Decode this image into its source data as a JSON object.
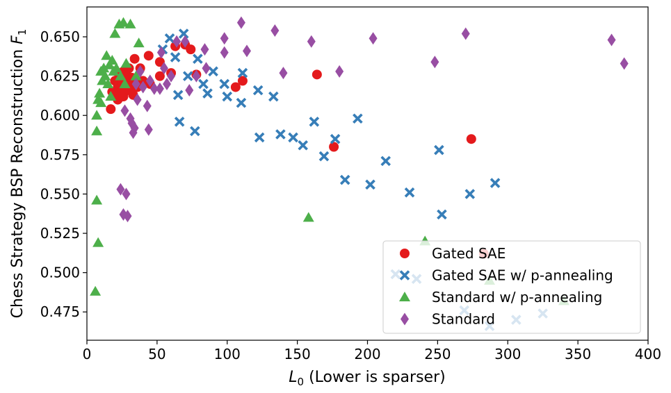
{
  "chart_data": {
    "type": "scatter",
    "title": "",
    "xlabel_var": "L",
    "xlabel_sub": "0",
    "xlabel_rest": " (Lower is sparser)",
    "ylabel_text": "Chess Strategy BSP Reconstruction ",
    "ylabel_var": "F",
    "ylabel_sub": "1",
    "xlim": [
      0,
      400
    ],
    "ylim": [
      0.457,
      0.669
    ],
    "xticks": [
      0,
      50,
      100,
      150,
      200,
      250,
      300,
      350,
      400
    ],
    "yticks": [
      0.475,
      0.5,
      0.525,
      0.55,
      0.575,
      0.6,
      0.625,
      0.65
    ],
    "ytick_labels": [
      "0.475",
      "0.500",
      "0.525",
      "0.550",
      "0.575",
      "0.600",
      "0.625",
      "0.650"
    ],
    "legend_position": "lower-right",
    "series": [
      {
        "name": "Gated SAE",
        "marker": "circle",
        "color": "#e41a1c",
        "points": [
          [
            17,
            0.604
          ],
          [
            18,
            0.615
          ],
          [
            20,
            0.622
          ],
          [
            21,
            0.614
          ],
          [
            22,
            0.61
          ],
          [
            22,
            0.618
          ],
          [
            23,
            0.625
          ],
          [
            24,
            0.615
          ],
          [
            25,
            0.62
          ],
          [
            26,
            0.612
          ],
          [
            26,
            0.628
          ],
          [
            27,
            0.618
          ],
          [
            28,
            0.622
          ],
          [
            29,
            0.625
          ],
          [
            30,
            0.616
          ],
          [
            30,
            0.63
          ],
          [
            31,
            0.62
          ],
          [
            32,
            0.624
          ],
          [
            33,
            0.613
          ],
          [
            34,
            0.636
          ],
          [
            35,
            0.62
          ],
          [
            36,
            0.618
          ],
          [
            38,
            0.63
          ],
          [
            40,
            0.622
          ],
          [
            44,
            0.638
          ],
          [
            45,
            0.62
          ],
          [
            52,
            0.634
          ],
          [
            52,
            0.625
          ],
          [
            60,
            0.627
          ],
          [
            63,
            0.644
          ],
          [
            70,
            0.645
          ],
          [
            74,
            0.642
          ],
          [
            78,
            0.626
          ],
          [
            106,
            0.618
          ],
          [
            111,
            0.622
          ],
          [
            164,
            0.626
          ],
          [
            176,
            0.58
          ],
          [
            274,
            0.585
          ],
          [
            283,
            0.512
          ]
        ]
      },
      {
        "name": "Gated SAE w/ p-annealing",
        "marker": "x",
        "color": "#377eb8",
        "points": [
          [
            54,
            0.642
          ],
          [
            59,
            0.649
          ],
          [
            63,
            0.637
          ],
          [
            65,
            0.613
          ],
          [
            66,
            0.596
          ],
          [
            69,
            0.652
          ],
          [
            72,
            0.625
          ],
          [
            77,
            0.59
          ],
          [
            79,
            0.636
          ],
          [
            83,
            0.62
          ],
          [
            86,
            0.614
          ],
          [
            90,
            0.628
          ],
          [
            98,
            0.62
          ],
          [
            100,
            0.612
          ],
          [
            110,
            0.608
          ],
          [
            111,
            0.627
          ],
          [
            122,
            0.616
          ],
          [
            123,
            0.586
          ],
          [
            133,
            0.612
          ],
          [
            138,
            0.588
          ],
          [
            147,
            0.586
          ],
          [
            154,
            0.581
          ],
          [
            162,
            0.596
          ],
          [
            169,
            0.574
          ],
          [
            177,
            0.585
          ],
          [
            184,
            0.559
          ],
          [
            193,
            0.598
          ],
          [
            202,
            0.556
          ],
          [
            213,
            0.571
          ],
          [
            220,
            0.499
          ],
          [
            230,
            0.551
          ],
          [
            235,
            0.496
          ],
          [
            251,
            0.578
          ],
          [
            253,
            0.537
          ],
          [
            269,
            0.476
          ],
          [
            273,
            0.55
          ],
          [
            287,
            0.466
          ],
          [
            291,
            0.557
          ],
          [
            306,
            0.47
          ],
          [
            325,
            0.474
          ]
        ]
      },
      {
        "name": "Standard w/ p-annealing",
        "marker": "triangle",
        "color": "#4daf4a",
        "points": [
          [
            6,
            0.488
          ],
          [
            7,
            0.59
          ],
          [
            7,
            0.546
          ],
          [
            8,
            0.519
          ],
          [
            7,
            0.6
          ],
          [
            8,
            0.61
          ],
          [
            9,
            0.614
          ],
          [
            10,
            0.628
          ],
          [
            10,
            0.608
          ],
          [
            11,
            0.622
          ],
          [
            12,
            0.63
          ],
          [
            13,
            0.625
          ],
          [
            14,
            0.638
          ],
          [
            15,
            0.62
          ],
          [
            16,
            0.632
          ],
          [
            17,
            0.612
          ],
          [
            18,
            0.635
          ],
          [
            19,
            0.628
          ],
          [
            20,
            0.652
          ],
          [
            21,
            0.63
          ],
          [
            23,
            0.658
          ],
          [
            24,
            0.625
          ],
          [
            26,
            0.659
          ],
          [
            27,
            0.62
          ],
          [
            28,
            0.633
          ],
          [
            31,
            0.658
          ],
          [
            35,
            0.625
          ],
          [
            37,
            0.646
          ],
          [
            158,
            0.535
          ],
          [
            241,
            0.52
          ],
          [
            287,
            0.495
          ],
          [
            340,
            0.482
          ]
        ]
      },
      {
        "name": "Standard",
        "marker": "diamond",
        "color": "#984ea3",
        "points": [
          [
            24,
            0.553
          ],
          [
            26,
            0.537
          ],
          [
            27,
            0.603
          ],
          [
            28,
            0.55
          ],
          [
            29,
            0.536
          ],
          [
            31,
            0.598
          ],
          [
            32,
            0.595
          ],
          [
            33,
            0.589
          ],
          [
            34,
            0.592
          ],
          [
            35,
            0.62
          ],
          [
            36,
            0.61
          ],
          [
            38,
            0.628
          ],
          [
            40,
            0.618
          ],
          [
            43,
            0.606
          ],
          [
            44,
            0.591
          ],
          [
            45,
            0.622
          ],
          [
            48,
            0.617
          ],
          [
            52,
            0.617
          ],
          [
            53,
            0.64
          ],
          [
            55,
            0.63
          ],
          [
            57,
            0.62
          ],
          [
            60,
            0.625
          ],
          [
            64,
            0.647
          ],
          [
            70,
            0.647
          ],
          [
            73,
            0.616
          ],
          [
            78,
            0.625
          ],
          [
            84,
            0.642
          ],
          [
            85,
            0.63
          ],
          [
            98,
            0.649
          ],
          [
            98,
            0.64
          ],
          [
            110,
            0.659
          ],
          [
            114,
            0.641
          ],
          [
            134,
            0.654
          ],
          [
            140,
            0.627
          ],
          [
            160,
            0.647
          ],
          [
            180,
            0.628
          ],
          [
            204,
            0.649
          ],
          [
            248,
            0.634
          ],
          [
            270,
            0.652
          ],
          [
            374,
            0.648
          ],
          [
            383,
            0.633
          ]
        ]
      }
    ]
  }
}
